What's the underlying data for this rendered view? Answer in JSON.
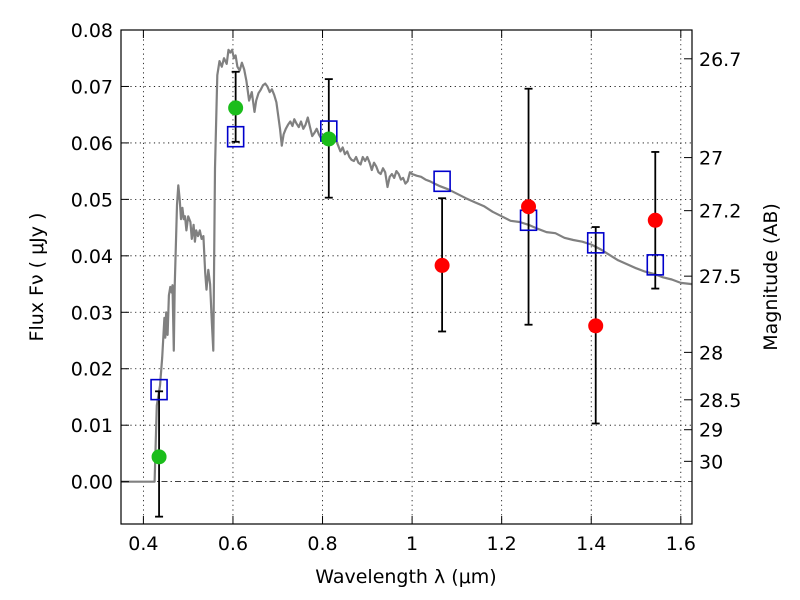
{
  "chart_data": {
    "type": "scatter",
    "xlabel": "Wavelength  λ (μm)",
    "ylabel": "Flux  Fν  ( μJy )",
    "y2label": "Magnitude (AB)",
    "xlim": [
      0.35,
      1.625
    ],
    "ylim": [
      -0.0075,
      0.08
    ],
    "x_ticks": [
      0.4,
      0.6,
      0.8,
      1.0,
      1.2,
      1.4,
      1.6
    ],
    "x_tick_labels": [
      "0.4",
      "0.6",
      "0.8",
      "1",
      "1.2",
      "1.4",
      "1.6"
    ],
    "y_ticks": [
      0.0,
      0.01,
      0.02,
      0.03,
      0.04,
      0.05,
      0.06,
      0.07,
      0.08
    ],
    "y_tick_labels": [
      "0.00",
      "0.01",
      "0.02",
      "0.03",
      "0.04",
      "0.05",
      "0.06",
      "0.07",
      "0.08"
    ],
    "mag_ticks": [
      {
        "label": "26.7",
        "flux": 0.0749
      },
      {
        "label": "27",
        "flux": 0.0574
      },
      {
        "label": "27.2",
        "flux": 0.048
      },
      {
        "label": "27.5",
        "flux": 0.0364
      },
      {
        "label": "28",
        "flux": 0.0229
      },
      {
        "label": "28.5",
        "flux": 0.0145
      },
      {
        "label": "29",
        "flux": 0.0092
      },
      {
        "label": "30",
        "flux": 0.0036
      }
    ],
    "colors": {
      "model": "#808080",
      "detection": "#1bbd1b",
      "upper": "#ff0000",
      "model_band": "#0000cc",
      "errorbar": "#000000"
    },
    "series": [
      {
        "name": "model SED",
        "style": "line",
        "points": [
          [
            0.35,
            0.0
          ],
          [
            0.425,
            0.0
          ],
          [
            0.43,
            0.0135
          ],
          [
            0.437,
            0.017
          ],
          [
            0.442,
            0.022
          ],
          [
            0.447,
            0.029
          ],
          [
            0.449,
            0.0255
          ],
          [
            0.451,
            0.03
          ],
          [
            0.454,
            0.026
          ],
          [
            0.457,
            0.033
          ],
          [
            0.46,
            0.0345
          ],
          [
            0.463,
            0.0335
          ],
          [
            0.465,
            0.0348
          ],
          [
            0.468,
            0.0232
          ],
          [
            0.47,
            0.0345
          ],
          [
            0.475,
            0.049
          ],
          [
            0.478,
            0.0525
          ],
          [
            0.481,
            0.05
          ],
          [
            0.484,
            0.0465
          ],
          [
            0.487,
            0.0485
          ],
          [
            0.49,
            0.0465
          ],
          [
            0.493,
            0.047
          ],
          [
            0.496,
            0.0445
          ],
          [
            0.5,
            0.047
          ],
          [
            0.505,
            0.046
          ],
          [
            0.508,
            0.043
          ],
          [
            0.512,
            0.0455
          ],
          [
            0.515,
            0.0425
          ],
          [
            0.518,
            0.0445
          ],
          [
            0.522,
            0.0435
          ],
          [
            0.526,
            0.0445
          ],
          [
            0.53,
            0.043
          ],
          [
            0.534,
            0.0435
          ],
          [
            0.538,
            0.037
          ],
          [
            0.541,
            0.034
          ],
          [
            0.545,
            0.0375
          ],
          [
            0.549,
            0.035
          ],
          [
            0.553,
            0.028
          ],
          [
            0.556,
            0.0232
          ],
          [
            0.56,
            0.0555
          ],
          [
            0.565,
            0.072
          ],
          [
            0.57,
            0.0745
          ],
          [
            0.575,
            0.0735
          ],
          [
            0.58,
            0.075
          ],
          [
            0.586,
            0.074
          ],
          [
            0.59,
            0.0765
          ],
          [
            0.594,
            0.076
          ],
          [
            0.598,
            0.0765
          ],
          [
            0.602,
            0.075
          ],
          [
            0.606,
            0.0755
          ],
          [
            0.61,
            0.0735
          ],
          [
            0.615,
            0.0728
          ],
          [
            0.62,
            0.0742
          ],
          [
            0.625,
            0.073
          ],
          [
            0.63,
            0.071
          ],
          [
            0.636,
            0.0675
          ],
          [
            0.642,
            0.069
          ],
          [
            0.648,
            0.0655
          ],
          [
            0.652,
            0.0675
          ],
          [
            0.657,
            0.0688
          ],
          [
            0.662,
            0.0694
          ],
          [
            0.667,
            0.0702
          ],
          [
            0.672,
            0.0705
          ],
          [
            0.677,
            0.07
          ],
          [
            0.682,
            0.069
          ],
          [
            0.687,
            0.0695
          ],
          [
            0.692,
            0.0685
          ],
          [
            0.697,
            0.0672
          ],
          [
            0.7,
            0.0655
          ],
          [
            0.705,
            0.0625
          ],
          [
            0.709,
            0.0595
          ],
          [
            0.713,
            0.0615
          ],
          [
            0.718,
            0.0625
          ],
          [
            0.723,
            0.0632
          ],
          [
            0.728,
            0.0638
          ],
          [
            0.733,
            0.063
          ],
          [
            0.737,
            0.0642
          ],
          [
            0.742,
            0.0634
          ],
          [
            0.747,
            0.0628
          ],
          [
            0.752,
            0.0638
          ],
          [
            0.757,
            0.0625
          ],
          [
            0.762,
            0.0632
          ],
          [
            0.767,
            0.0645
          ],
          [
            0.772,
            0.0628
          ],
          [
            0.777,
            0.0612
          ],
          [
            0.782,
            0.0618
          ],
          [
            0.787,
            0.0625
          ],
          [
            0.792,
            0.0615
          ],
          [
            0.797,
            0.0608
          ],
          [
            0.802,
            0.0612
          ],
          [
            0.807,
            0.0605
          ],
          [
            0.812,
            0.0615
          ],
          [
            0.818,
            0.0615
          ],
          [
            0.825,
            0.0612
          ],
          [
            0.83,
            0.0605
          ],
          [
            0.835,
            0.0595
          ],
          [
            0.84,
            0.0585
          ],
          [
            0.845,
            0.0592
          ],
          [
            0.85,
            0.058
          ],
          [
            0.855,
            0.0585
          ],
          [
            0.86,
            0.0575
          ],
          [
            0.865,
            0.057
          ],
          [
            0.87,
            0.0568
          ],
          [
            0.875,
            0.0575
          ],
          [
            0.88,
            0.0565
          ],
          [
            0.885,
            0.0562
          ],
          [
            0.89,
            0.0575
          ],
          [
            0.895,
            0.0568
          ],
          [
            0.9,
            0.0575
          ],
          [
            0.905,
            0.0565
          ],
          [
            0.91,
            0.0552
          ],
          [
            0.915,
            0.0565
          ],
          [
            0.92,
            0.0558
          ],
          [
            0.925,
            0.0548
          ],
          [
            0.93,
            0.0545
          ],
          [
            0.935,
            0.0555
          ],
          [
            0.94,
            0.0548
          ],
          [
            0.945,
            0.0522
          ],
          [
            0.95,
            0.054
          ],
          [
            0.955,
            0.0545
          ],
          [
            0.96,
            0.0538
          ],
          [
            0.965,
            0.055
          ],
          [
            0.97,
            0.0545
          ],
          [
            0.975,
            0.0535
          ],
          [
            0.98,
            0.0538
          ],
          [
            0.985,
            0.0528
          ],
          [
            0.99,
            0.0532
          ],
          [
            0.995,
            0.0548
          ],
          [
            1.0,
            0.0545
          ],
          [
            1.01,
            0.0542
          ],
          [
            1.02,
            0.054
          ],
          [
            1.03,
            0.0535
          ],
          [
            1.04,
            0.0532
          ],
          [
            1.05,
            0.0528
          ],
          [
            1.06,
            0.0524
          ],
          [
            1.08,
            0.0518
          ],
          [
            1.1,
            0.051
          ],
          [
            1.12,
            0.0502
          ],
          [
            1.14,
            0.0495
          ],
          [
            1.16,
            0.0488
          ],
          [
            1.18,
            0.0478
          ],
          [
            1.2,
            0.047
          ],
          [
            1.22,
            0.0462
          ],
          [
            1.24,
            0.046
          ],
          [
            1.26,
            0.0455
          ],
          [
            1.28,
            0.0448
          ],
          [
            1.3,
            0.0442
          ],
          [
            1.32,
            0.044
          ],
          [
            1.34,
            0.0432
          ],
          [
            1.36,
            0.0428
          ],
          [
            1.38,
            0.0425
          ],
          [
            1.4,
            0.042
          ],
          [
            1.42,
            0.0412
          ],
          [
            1.44,
            0.0402
          ],
          [
            1.46,
            0.0392
          ],
          [
            1.48,
            0.0385
          ],
          [
            1.5,
            0.0378
          ],
          [
            1.52,
            0.0372
          ],
          [
            1.54,
            0.0368
          ],
          [
            1.56,
            0.0362
          ],
          [
            1.58,
            0.0358
          ],
          [
            1.6,
            0.0352
          ],
          [
            1.625,
            0.035
          ]
        ]
      },
      {
        "name": "detections",
        "style": "green-circle",
        "points": [
          {
            "x": 0.435,
            "y": 0.0044,
            "err_lo": 0.0106,
            "err_hi": 0.0116
          },
          {
            "x": 0.606,
            "y": 0.0662,
            "err_lo": 0.006,
            "err_hi": 0.0064
          },
          {
            "x": 0.814,
            "y": 0.0607,
            "err_lo": 0.0104,
            "err_hi": 0.0106
          }
        ]
      },
      {
        "name": "other photometry",
        "style": "red-circle",
        "points": [
          {
            "x": 1.067,
            "y": 0.0383,
            "err_lo": 0.0117,
            "err_hi": 0.0119
          },
          {
            "x": 1.26,
            "y": 0.0487,
            "err_lo": 0.0209,
            "err_hi": 0.0209
          },
          {
            "x": 1.41,
            "y": 0.0276,
            "err_lo": 0.0173,
            "err_hi": 0.0175
          },
          {
            "x": 1.543,
            "y": 0.0463,
            "err_lo": 0.0121,
            "err_hi": 0.0121
          }
        ]
      },
      {
        "name": "model band flux",
        "style": "blue-open-square",
        "points": [
          {
            "x": 0.435,
            "y": 0.0163
          },
          {
            "x": 0.606,
            "y": 0.0611
          },
          {
            "x": 0.814,
            "y": 0.0621
          },
          {
            "x": 1.067,
            "y": 0.0532
          },
          {
            "x": 1.26,
            "y": 0.0463
          },
          {
            "x": 1.41,
            "y": 0.0423
          },
          {
            "x": 1.543,
            "y": 0.0384
          }
        ]
      }
    ]
  }
}
